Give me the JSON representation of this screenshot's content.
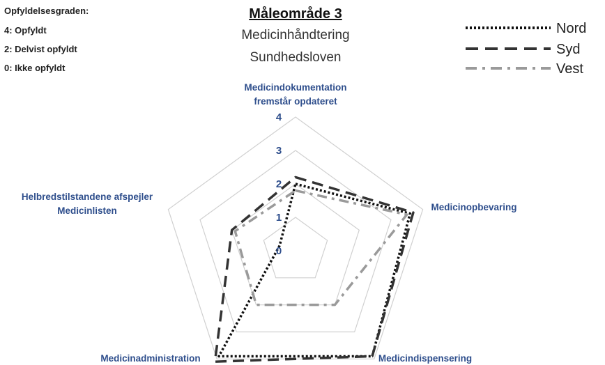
{
  "scale_legend": {
    "heading": "Opfyldelsesgraden:",
    "items": [
      "4: Opfyldt",
      "2: Delvist opfyldt",
      "0: Ikke opfyldt"
    ]
  },
  "chart_data": {
    "type": "radar",
    "title": "Måleområde 3",
    "subtitle": [
      "Medicinhåndtering",
      "Sundhedsloven"
    ],
    "axes": [
      [
        "Medicindokumentation",
        "fremstår opdateret"
      ],
      [
        "Medicinopbevaring"
      ],
      [
        "Medicindispensering"
      ],
      [
        "Medicinadministration"
      ],
      [
        "Helbredstilstandene afspejler",
        "Medicinlisten"
      ]
    ],
    "range": [
      0,
      4
    ],
    "ticks": [
      0,
      1,
      2,
      3,
      4
    ],
    "series": [
      {
        "name": "Nord",
        "values": [
          2,
          3.6,
          3.9,
          3.9,
          0.5
        ],
        "dash": "dotted",
        "color": "#111111"
      },
      {
        "name": "Syd",
        "values": [
          2.2,
          3.7,
          3.9,
          4.1,
          2.0
        ],
        "dash": "dashed",
        "color": "#333333"
      },
      {
        "name": "Vest",
        "values": [
          1.8,
          3.5,
          2.0,
          2.0,
          1.9
        ],
        "dash": "dashdot",
        "color": "#9a9a9a"
      }
    ],
    "legend_position": "top-right",
    "grid": true
  }
}
